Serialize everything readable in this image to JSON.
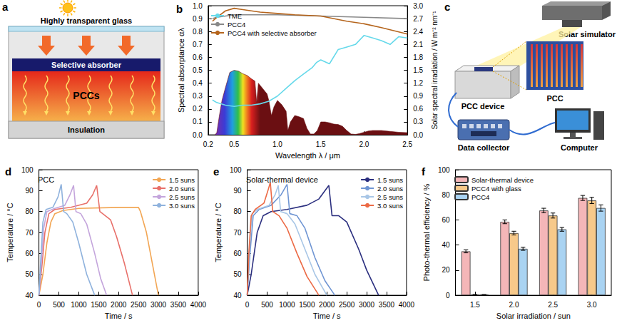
{
  "diagrams": {
    "a": {
      "label": "a",
      "glass": "Highly transparent glass",
      "absorber": "Selective absorber",
      "material": "PCCs",
      "insulation": "Insulation"
    },
    "c": {
      "label": "c",
      "simulator": "Solar simulator",
      "device": "PCC device",
      "sample": "PCC",
      "collector": "Data collector",
      "computer": "Computer"
    }
  },
  "chart_data": [
    {
      "label": "b",
      "type": "line",
      "x_label": "Wavelength λ / μm",
      "y_label": "Spectral absorptance αλ",
      "y2_label": "Solar spectral irradiation / W m⁻² nm⁻¹",
      "xlim": [
        0.2,
        2.5
      ],
      "xticks": [
        0.2,
        0.5,
        {
          "value": 1,
          "label": "1.0"
        },
        1.5,
        {
          "value": 2,
          "label": "2.0"
        },
        2.5
      ],
      "ylim": [
        0,
        1
      ],
      "yticks": [
        {
          "value": 0,
          "label": "0.0"
        },
        0.1,
        0.2,
        0.3,
        0.4,
        0.5,
        0.6,
        0.7,
        0.8,
        0.9,
        {
          "value": 1,
          "label": "1.0"
        }
      ],
      "y2lim": [
        0,
        3
      ],
      "y2ticks": [
        {
          "value": 0,
          "label": "0.0"
        },
        0.3,
        0.6,
        0.9,
        1.2,
        1.5,
        1.8,
        2.1,
        2.4,
        2.7,
        {
          "value": 3,
          "label": "3.0"
        }
      ],
      "legend": "upper left",
      "grid": false,
      "series": [
        {
          "name": "TME",
          "color": "#66d9ea",
          "x": [
            0.25,
            0.3,
            0.4,
            0.5,
            0.6,
            0.7,
            0.8,
            0.9,
            1.0,
            1.1,
            1.2,
            1.3,
            1.4,
            1.45,
            1.5,
            1.6,
            1.7,
            1.8,
            1.9,
            2.0,
            2.1,
            2.2,
            2.3,
            2.4,
            2.5
          ],
          "values": [
            0.27,
            0.25,
            0.23,
            0.22,
            0.23,
            0.23,
            0.24,
            0.26,
            0.3,
            0.36,
            0.42,
            0.47,
            0.52,
            0.56,
            0.58,
            0.55,
            0.66,
            0.68,
            0.7,
            0.77,
            0.75,
            0.73,
            0.7,
            0.76,
            0.75
          ]
        },
        {
          "name": "PCC4",
          "color": "#888888",
          "x": [
            0.25,
            0.3,
            0.4,
            0.5,
            0.7,
            1.0,
            1.5,
            2.0,
            2.5
          ],
          "values": [
            0.9,
            0.91,
            0.92,
            0.93,
            0.93,
            0.93,
            0.92,
            0.91,
            0.9
          ]
        },
        {
          "name": "PCC4 with selective absorber",
          "color": "#b5651d",
          "x": [
            0.25,
            0.3,
            0.4,
            0.5,
            0.6,
            0.8,
            1.0,
            1.2,
            1.5,
            1.8,
            2.0,
            2.2,
            2.5
          ],
          "values": [
            0.88,
            0.91,
            0.96,
            0.98,
            0.97,
            0.95,
            0.94,
            0.93,
            0.92,
            0.88,
            0.86,
            0.83,
            0.78
          ]
        },
        {
          "type": "area",
          "axis": "y2",
          "color": "#6b0f12",
          "x": [
            0.28,
            0.3,
            0.33,
            0.36,
            0.4,
            0.45,
            0.5,
            0.55,
            0.6,
            0.65,
            0.7,
            0.74,
            0.76,
            0.78,
            0.82,
            0.88,
            0.9,
            0.93,
            0.96,
            1.0,
            1.05,
            1.1,
            1.12,
            1.15,
            1.2,
            1.25,
            1.3,
            1.34,
            1.38,
            1.42,
            1.46,
            1.5,
            1.55,
            1.6,
            1.65,
            1.7,
            1.75,
            1.8,
            1.85,
            1.9,
            1.95,
            2.0,
            2.05,
            2.1,
            2.2,
            2.3,
            2.4,
            2.5
          ],
          "values": [
            0,
            0.05,
            0.45,
            0.8,
            1.1,
            1.45,
            1.5,
            1.48,
            1.42,
            1.38,
            1.3,
            1.25,
            0.75,
            1.2,
            1.1,
            0.95,
            0.8,
            0.45,
            0.65,
            0.8,
            0.7,
            0.55,
            0.1,
            0.3,
            0.45,
            0.42,
            0.38,
            0.15,
            0.02,
            0.02,
            0.1,
            0.3,
            0.3,
            0.28,
            0.25,
            0.24,
            0.2,
            0.1,
            0.02,
            0.01,
            0.03,
            0.06,
            0.09,
            0.1,
            0.1,
            0.08,
            0.06,
            0.05
          ]
        }
      ]
    },
    {
      "label": "d",
      "type": "line",
      "annotation": "PCC",
      "x_label": "Time / s",
      "y_label": "Temperature / °C",
      "xlim": [
        0,
        4000
      ],
      "xticks": [
        0,
        500,
        1000,
        1500,
        2000,
        2500,
        3000,
        3500,
        4000
      ],
      "ylim": [
        40,
        100
      ],
      "yticks": [
        40,
        50,
        60,
        70,
        80,
        90,
        100
      ],
      "legend": "upper right",
      "grid": false,
      "series": [
        {
          "name": "1.5 suns",
          "color": "#f2a654",
          "x": [
            0,
            100,
            200,
            300,
            400,
            600,
            1000,
            2000,
            2500,
            2550,
            2700,
            2850,
            3000
          ],
          "values": [
            40,
            50,
            65,
            75,
            79,
            80.5,
            81.5,
            82,
            82,
            80,
            70,
            55,
            40
          ]
        },
        {
          "name": "2.0 suns",
          "color": "#e8706a",
          "x": [
            0,
            80,
            150,
            250,
            400,
            800,
            1200,
            1350,
            1450,
            1530,
            1600,
            1800,
            1950,
            2150,
            2350
          ],
          "values": [
            40,
            55,
            70,
            79,
            81,
            82,
            84,
            88,
            92.5,
            80,
            79,
            76,
            68,
            55,
            40
          ]
        },
        {
          "name": "2.5 suns",
          "color": "#c4a5dc",
          "x": [
            0,
            60,
            120,
            200,
            400,
            650,
            780,
            870,
            930,
            1050,
            1200,
            1400,
            1550,
            1700
          ],
          "values": [
            40,
            55,
            72,
            80,
            81.5,
            83,
            88,
            92.5,
            80,
            79,
            74,
            60,
            48,
            40
          ]
        },
        {
          "name": "3.0 suns",
          "color": "#8fb2dd",
          "x": [
            0,
            40,
            100,
            180,
            350,
            480,
            560,
            620,
            700,
            850,
            1000,
            1200,
            1400
          ],
          "values": [
            40,
            55,
            75,
            81,
            82,
            87,
            93,
            80,
            79,
            75,
            65,
            50,
            40
          ]
        }
      ]
    },
    {
      "label": "e",
      "type": "line",
      "annotation": "Solar-thermal device",
      "x_label": "Time / s",
      "y_label": "Temperature / °C",
      "xlim": [
        0,
        4000
      ],
      "xticks": [
        0,
        500,
        1000,
        1500,
        2000,
        2500,
        3000,
        3500,
        4000
      ],
      "ylim": [
        40,
        100
      ],
      "yticks": [
        40,
        50,
        60,
        70,
        80,
        90,
        100
      ],
      "legend": "upper right",
      "grid": false,
      "series": [
        {
          "name": "1.5 suns",
          "color": "#2b2f7f",
          "x": [
            0,
            100,
            250,
            400,
            600,
            1000,
            1500,
            1800,
            2050,
            2130,
            2300,
            2500,
            2800,
            3000,
            3300
          ],
          "values": [
            40,
            50,
            70,
            78,
            80,
            81,
            83,
            86,
            92.5,
            78,
            78,
            75,
            62,
            52,
            40
          ]
        },
        {
          "name": "2.0 suns",
          "color": "#6f95d3",
          "x": [
            0,
            70,
            150,
            300,
            600,
            850,
            1000,
            1070,
            1250,
            1450,
            1700,
            1950,
            2200
          ],
          "values": [
            40,
            60,
            78,
            81,
            83,
            88,
            93,
            79,
            78,
            72,
            58,
            47,
            40
          ]
        },
        {
          "name": "2.5 suns",
          "color": "#a8c6e6",
          "x": [
            0,
            50,
            120,
            250,
            550,
            700,
            780,
            840,
            1000,
            1200,
            1450,
            1700,
            2000
          ],
          "values": [
            40,
            60,
            79,
            81,
            83,
            88,
            92.5,
            80,
            79,
            74,
            62,
            50,
            40
          ]
        },
        {
          "name": "3.0 suns",
          "color": "#ec6a45",
          "x": [
            0,
            40,
            100,
            200,
            420,
            520,
            580,
            640,
            800,
            1000,
            1250,
            1500,
            1800
          ],
          "values": [
            40,
            60,
            78,
            81,
            84,
            90,
            94,
            80,
            78,
            72,
            60,
            49,
            40
          ]
        }
      ]
    },
    {
      "label": "f",
      "type": "bar",
      "x_label": "Solar irradiation / sun",
      "y_label": "Photo-thermal efficiency / %",
      "categories": [
        "1.5",
        "2.0",
        "2.5",
        "3.0"
      ],
      "ylim": [
        0,
        100
      ],
      "yticks": [
        0,
        20,
        40,
        60,
        80,
        100
      ],
      "legend": "upper left",
      "grid": false,
      "series": [
        {
          "name": "Solar-thermal device",
          "color": "#f4b6b8",
          "values": [
            35,
            58.5,
            67.5,
            77.5
          ],
          "errors": [
            1.2,
            1.5,
            1.8,
            2.0
          ]
        },
        {
          "name": "PCC4 with glass",
          "color": "#f7c98a",
          "values": [
            0.5,
            49.5,
            63.5,
            75.5
          ],
          "errors": [
            0,
            1.5,
            2.0,
            2.5
          ]
        },
        {
          "name": "PCC4",
          "color": "#a9d3f2",
          "values": [
            0.5,
            37,
            52.5,
            69.5
          ],
          "errors": [
            0,
            1.2,
            1.5,
            2.5
          ]
        }
      ]
    }
  ]
}
